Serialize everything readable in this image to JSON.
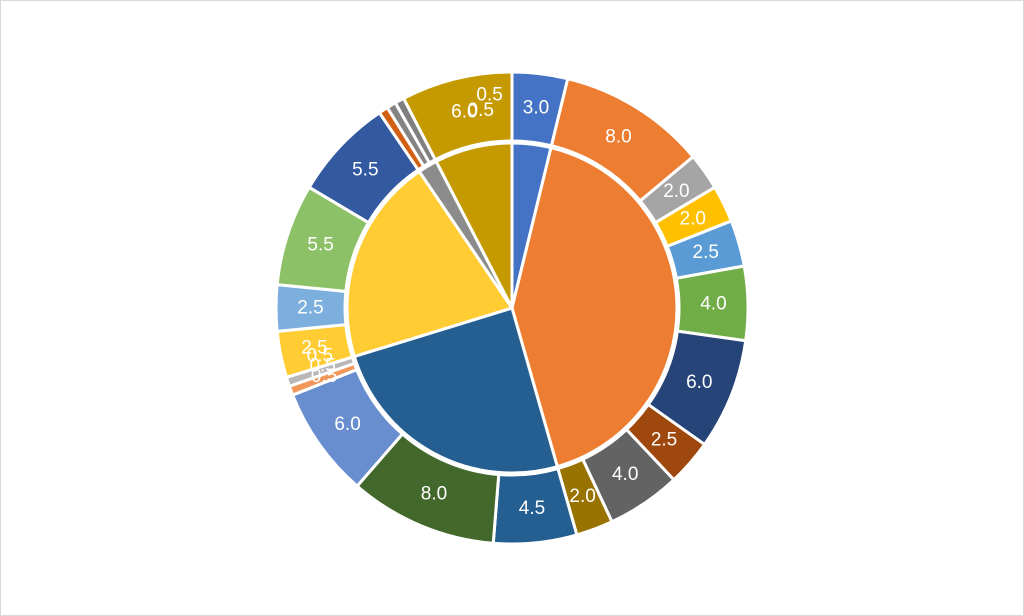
{
  "chart_data": {
    "type": "sunburst",
    "inner_ring": {
      "series": [
        {
          "values": [
            3.0
          ],
          "color": "#4472c4"
        },
        {
          "values": [
            8.0,
            2.0,
            2.0,
            2.5,
            4.0,
            6.0,
            2.5,
            4.0,
            2.0
          ],
          "color": "#ed7d31"
        },
        {
          "values": [
            4.5,
            8.0,
            6.0,
            0.5,
            0.5
          ],
          "color": "#255e91"
        },
        {
          "values": [
            2.5,
            2.5,
            5.5,
            5.5
          ],
          "color": "#ffcd33"
        },
        {
          "values": [
            0.5,
            0.5,
            0.5
          ],
          "color": "#8c8c8c"
        },
        {
          "values": [
            6.0
          ],
          "color": "#c59a00"
        }
      ]
    },
    "outer_ring": {
      "segments": [
        {
          "value": 3.0,
          "label": "3.0",
          "color": "#4472c4"
        },
        {
          "value": 8.0,
          "label": "8.0",
          "color": "#ed7d31"
        },
        {
          "value": 2.0,
          "label": "2.0",
          "color": "#a5a5a5"
        },
        {
          "value": 2.0,
          "label": "2.0",
          "color": "#ffc000"
        },
        {
          "value": 2.5,
          "label": "2.5",
          "color": "#5b9bd5"
        },
        {
          "value": 4.0,
          "label": "4.0",
          "color": "#70ad47"
        },
        {
          "value": 6.0,
          "label": "6.0",
          "color": "#264478"
        },
        {
          "value": 2.5,
          "label": "2.5",
          "color": "#9e480e"
        },
        {
          "value": 4.0,
          "label": "4.0",
          "color": "#636363"
        },
        {
          "value": 2.0,
          "label": "2.0",
          "color": "#997300"
        },
        {
          "value": 4.5,
          "label": "4.5",
          "color": "#255e91"
        },
        {
          "value": 8.0,
          "label": "8.0",
          "color": "#43682b"
        },
        {
          "value": 6.0,
          "label": "6.0",
          "color": "#698ed0"
        },
        {
          "value": 0.5,
          "label": "",
          "color": "#f1975a"
        },
        {
          "value": 0.5,
          "label": "",
          "color": "#b7b7b7"
        },
        {
          "value": 2.5,
          "label": "2.5",
          "color": "#ffcd33"
        },
        {
          "value": 2.5,
          "label": "2.5",
          "color": "#7cafdd"
        },
        {
          "value": 5.5,
          "label": "5.5",
          "color": "#8cc168"
        },
        {
          "value": 5.5,
          "label": "5.5",
          "color": "#335aa1"
        },
        {
          "value": 0.5,
          "label": "",
          "color": "#d26012"
        },
        {
          "value": 0.5,
          "label": "",
          "color": "#848484"
        },
        {
          "value": 0.5,
          "label": "",
          "color": "#7f7f7f"
        },
        {
          "value": 6.0,
          "label": "6.0",
          "color": "#c59a00"
        }
      ],
      "overlapping_labels": [
        "0.5",
        "0.5",
        "0.5",
        "0.5",
        "0.5"
      ]
    }
  }
}
